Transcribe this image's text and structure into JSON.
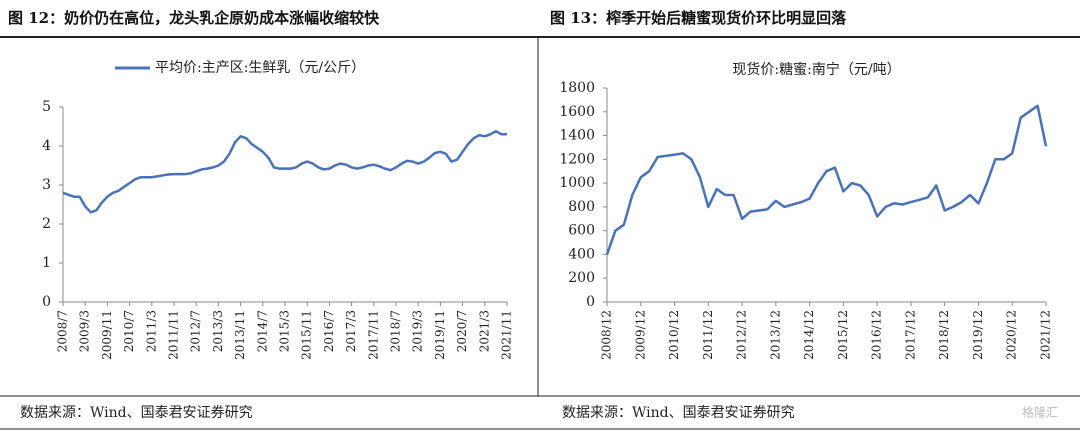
{
  "chart_data": [
    {
      "type": "line",
      "title": "图 12：奶价仍在高位，龙头乳企原奶成本涨幅收缩较快",
      "source": "数据来源：Wind、国泰君安证券研究",
      "categories": [
        "2008/7",
        null,
        null,
        null,
        "2009/3",
        null,
        null,
        null,
        "2009/11",
        null,
        null,
        null,
        "2010/7",
        null,
        null,
        null,
        "2011/3",
        null,
        null,
        null,
        "2011/11",
        null,
        null,
        null,
        "2012/7",
        null,
        null,
        null,
        "2013/3",
        null,
        null,
        null,
        "2013/11",
        null,
        null,
        null,
        "2014/7",
        null,
        null,
        null,
        "2015/3",
        null,
        null,
        null,
        "2015/11",
        null,
        null,
        null,
        "2016/7",
        null,
        null,
        null,
        "2017/3",
        null,
        null,
        null,
        "2017/11",
        null,
        null,
        null,
        "2018/7",
        null,
        null,
        null,
        "2019/3",
        null,
        null,
        null,
        "2019/11",
        null,
        null,
        null,
        "2020/7",
        null,
        null,
        null,
        "2021/3",
        null,
        null,
        null,
        "2021/11"
      ],
      "series": [
        {
          "name": "平均价:主产区:生鲜乳（元/公斤）",
          "color": "#4a72b8",
          "values": [
            2.8,
            2.75,
            2.7,
            2.7,
            2.45,
            2.3,
            2.35,
            2.55,
            2.7,
            2.8,
            2.85,
            2.95,
            3.05,
            3.15,
            3.2,
            3.2,
            3.2,
            3.22,
            3.25,
            3.27,
            3.28,
            3.28,
            3.28,
            3.3,
            3.35,
            3.4,
            3.42,
            3.45,
            3.5,
            3.6,
            3.8,
            4.1,
            4.25,
            4.2,
            4.05,
            3.95,
            3.85,
            3.7,
            3.45,
            3.42,
            3.42,
            3.42,
            3.45,
            3.55,
            3.6,
            3.55,
            3.45,
            3.4,
            3.42,
            3.5,
            3.55,
            3.52,
            3.45,
            3.42,
            3.45,
            3.5,
            3.52,
            3.48,
            3.42,
            3.38,
            3.45,
            3.55,
            3.62,
            3.6,
            3.55,
            3.6,
            3.7,
            3.82,
            3.85,
            3.8,
            3.6,
            3.65,
            3.85,
            4.05,
            4.2,
            4.28,
            4.25,
            4.3,
            4.38,
            4.3,
            4.3
          ]
        }
      ],
      "ylim": [
        0,
        5
      ],
      "yticks": [
        0,
        1,
        2,
        3,
        4,
        5
      ],
      "legend": "top",
      "legend_line": true
    },
    {
      "type": "line",
      "title": "图 13：榨季开始后糖蜜现货价环比明显回落",
      "source": "数据来源：Wind、国泰君安证券研究",
      "categories": [
        "2008/12",
        null,
        null,
        null,
        "2009/12",
        null,
        null,
        null,
        "2010/12",
        null,
        null,
        null,
        "2011/12",
        null,
        null,
        null,
        "2012/12",
        null,
        null,
        null,
        "2013/12",
        null,
        null,
        null,
        "2014/12",
        null,
        null,
        null,
        "2015/12",
        null,
        null,
        null,
        "2016/12",
        null,
        null,
        null,
        "2017/12",
        null,
        null,
        null,
        "2018/12",
        null,
        null,
        null,
        "2019/12",
        null,
        null,
        null,
        "2020/12",
        null,
        null,
        null,
        "2021/12"
      ],
      "series": [
        {
          "name": "现货价:糖蜜:南宁（元/吨）",
          "color": "#4a72b8",
          "values": [
            400,
            600,
            650,
            900,
            1050,
            1100,
            1220,
            1230,
            1240,
            1250,
            1200,
            1050,
            800,
            950,
            900,
            900,
            700,
            760,
            770,
            780,
            850,
            800,
            820,
            840,
            870,
            1000,
            1100,
            1130,
            930,
            1000,
            980,
            900,
            720,
            800,
            830,
            820,
            840,
            860,
            880,
            980,
            770,
            800,
            840,
            900,
            830,
            1000,
            1200,
            1200,
            1250,
            1550,
            1600,
            1650,
            1310
          ]
        }
      ],
      "ylim": [
        0,
        1800
      ],
      "yticks": [
        0,
        200,
        400,
        600,
        800,
        1000,
        1200,
        1400,
        1600,
        1800
      ],
      "legend": "top",
      "legend_line": false
    }
  ],
  "watermark": "格隆汇"
}
